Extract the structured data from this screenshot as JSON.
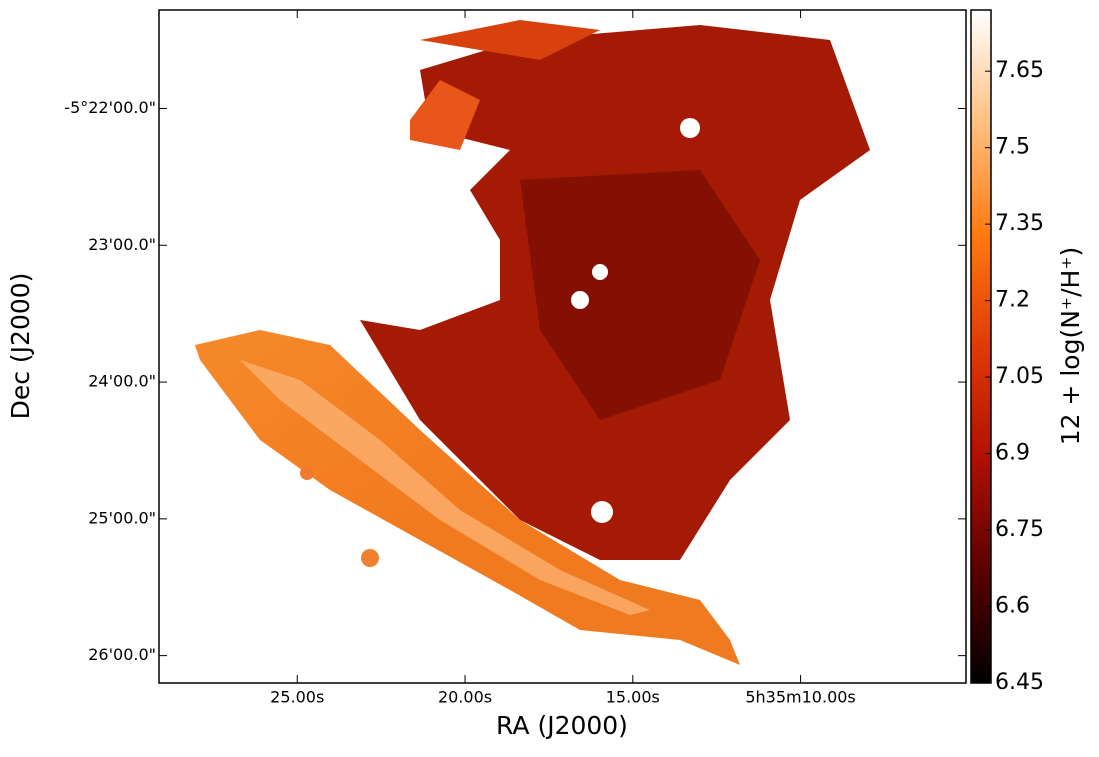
{
  "chart_data": {
    "type": "image",
    "xlabel": "RA (J2000)",
    "ylabel": "Dec (J2000)",
    "xlim": [
      29.12,
      5.07
    ],
    "xticks": [
      {
        "value": 25,
        "label": "25.00s"
      },
      {
        "value": 20,
        "label": "20.00s"
      },
      {
        "value": 15,
        "label": "15.00s"
      },
      {
        "value": 10,
        "label": "5h35m10.00s"
      }
    ],
    "ylim": [
      -326.2,
      -321.28
    ],
    "yticks": [
      {
        "value": -322,
        "label": "-5°22'00.0\""
      },
      {
        "value": -323,
        "label": "23'00.0\""
      },
      {
        "value": -324,
        "label": "24'00.0\""
      },
      {
        "value": -325,
        "label": "25'00.0\""
      },
      {
        "value": -326,
        "label": "26'00.0\""
      }
    ],
    "colorbar": {
      "label": "12 + log(N⁺/H⁺)",
      "clim": [
        6.45,
        7.77
      ],
      "ticks": [
        6.45,
        6.6,
        6.75,
        6.9,
        7.05,
        7.2,
        7.35,
        7.5,
        7.65
      ],
      "colormap": [
        "#000000",
        "#5a0000",
        "#b01000",
        "#e03a05",
        "#ff7a10",
        "#ffc080",
        "#ffffff"
      ]
    }
  }
}
